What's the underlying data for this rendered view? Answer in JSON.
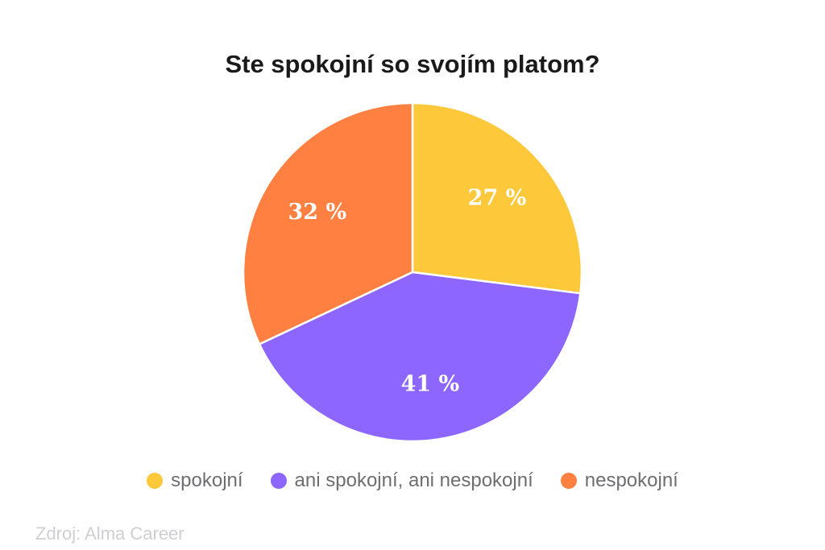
{
  "chart_data": {
    "type": "pie",
    "title": "Ste spokojní so svojím platom?",
    "slices": [
      {
        "label": "spokojní",
        "value": 27,
        "display": "27 %",
        "color": "#FDC93B"
      },
      {
        "label": "ani spokojní, ani nespokojní",
        "value": 41,
        "display": "41 %",
        "color": "#8C66FF"
      },
      {
        "label": "nespokojní",
        "value": 32,
        "display": "32 %",
        "color": "#FF8040"
      }
    ],
    "legend_position": "bottom"
  },
  "source": "Zdroj: Alma Career"
}
